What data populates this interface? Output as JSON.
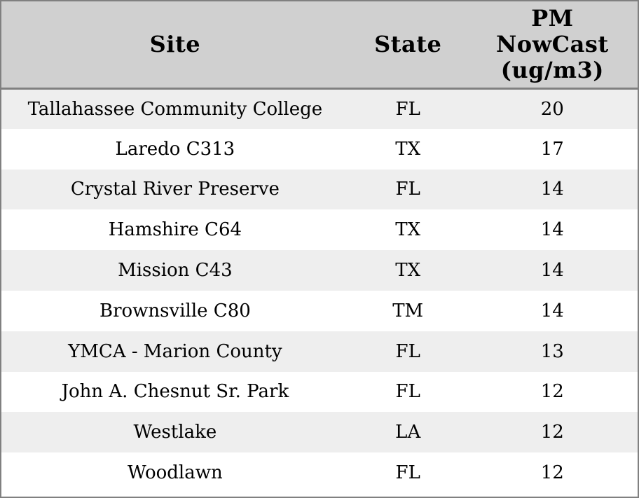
{
  "colors": {
    "header_bg": "#d0d0d0",
    "row_odd_bg": "#eeeeee",
    "row_even_bg": "#ffffff",
    "border": "#808080",
    "text": "#000000"
  },
  "chart_data": {
    "type": "table",
    "columns": [
      "Site",
      "State",
      "PM NowCast (ug/m3)"
    ],
    "rows": [
      [
        "Tallahassee Community College",
        "FL",
        20
      ],
      [
        "Laredo C313",
        "TX",
        17
      ],
      [
        "Crystal River Preserve",
        "FL",
        14
      ],
      [
        "Hamshire C64",
        "TX",
        14
      ],
      [
        "Mission C43",
        "TX",
        14
      ],
      [
        "Brownsville C80",
        "TM",
        14
      ],
      [
        "YMCA - Marion County",
        "FL",
        13
      ],
      [
        "John A. Chesnut Sr. Park",
        "FL",
        12
      ],
      [
        "Westlake",
        "LA",
        12
      ],
      [
        "Woodlawn",
        "FL",
        12
      ]
    ],
    "layout": {
      "striped_rows": true,
      "gridlines": false,
      "header_align": "center",
      "cell_align": "center"
    }
  }
}
